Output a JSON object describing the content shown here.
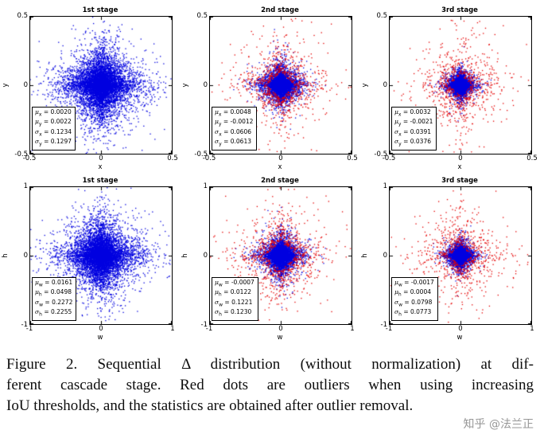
{
  "figure": {
    "caption_lines": [
      "Figure 2. Sequential Δ distribution (without normalization) at dif-",
      "ferent cascade stage. Red dots are outliers when using increasing",
      "IoU thresholds, and the statistics are obtained after outlier removal."
    ],
    "watermark": "知乎 @法兰正"
  },
  "colors": {
    "inlier": "#0000e0",
    "outlier": "#e60000",
    "axis": "#000000"
  },
  "chart_data": [
    {
      "type": "scatter",
      "title": "1st stage",
      "xlabel": "x",
      "ylabel": "y",
      "xlim": [
        -0.5,
        0.5
      ],
      "ylim": [
        -0.5,
        0.5
      ],
      "xticks": [
        "-0.5",
        "0",
        "0.5"
      ],
      "yticks": [
        "0.5",
        "0",
        "-0.5"
      ],
      "grid": false,
      "legend": null,
      "stats": [
        {
          "sym": "μ",
          "sub": "x",
          "value": "0.0020"
        },
        {
          "sym": "μ",
          "sub": "y",
          "value": "0.0022"
        },
        {
          "sym": "σ",
          "sub": "x",
          "value": "0.1234"
        },
        {
          "sym": "σ",
          "sub": "y",
          "value": "0.1297"
        }
      ],
      "series": [
        {
          "name": "inliers",
          "color": "#0000e0",
          "n": 7000,
          "scale": 0.085,
          "min_l1": 0
        }
      ]
    },
    {
      "type": "scatter",
      "title": "2nd stage",
      "xlabel": "x",
      "ylabel": "y",
      "xlim": [
        -0.5,
        0.5
      ],
      "ylim": [
        -0.5,
        0.5
      ],
      "xticks": [
        "-0.5",
        "0",
        "0.5"
      ],
      "yticks": [
        "0.5",
        "0",
        "-0.5"
      ],
      "grid": false,
      "legend": null,
      "stats": [
        {
          "sym": "μ",
          "sub": "x",
          "value": "0.0048"
        },
        {
          "sym": "μ",
          "sub": "y",
          "value": "-0.0012"
        },
        {
          "sym": "σ",
          "sub": "x",
          "value": "0.0606"
        },
        {
          "sym": "σ",
          "sub": "y",
          "value": "0.0613"
        }
      ],
      "series": [
        {
          "name": "inliers",
          "color": "#0000e0",
          "n": 4500,
          "scale": 0.042,
          "min_l1": 0
        },
        {
          "name": "outliers",
          "color": "#e60000",
          "n": 900,
          "scale": 0.1,
          "min_l1": 0.1
        }
      ]
    },
    {
      "type": "scatter",
      "title": "3rd stage",
      "xlabel": "x",
      "ylabel": "y",
      "xlim": [
        -0.5,
        0.5
      ],
      "ylim": [
        -0.5,
        0.5
      ],
      "xticks": [
        "-0.5",
        "0",
        "0.5"
      ],
      "yticks": [
        "0.5",
        "0",
        "-0.5"
      ],
      "grid": false,
      "legend": null,
      "stats": [
        {
          "sym": "μ",
          "sub": "x",
          "value": "0.0032"
        },
        {
          "sym": "μ",
          "sub": "y",
          "value": "-0.0021"
        },
        {
          "sym": "σ",
          "sub": "x",
          "value": "0.0391"
        },
        {
          "sym": "σ",
          "sub": "y",
          "value": "0.0376"
        }
      ],
      "series": [
        {
          "name": "inliers",
          "color": "#0000e0",
          "n": 4000,
          "scale": 0.028,
          "min_l1": 0
        },
        {
          "name": "outliers",
          "color": "#e60000",
          "n": 800,
          "scale": 0.11,
          "min_l1": 0.08
        }
      ]
    },
    {
      "type": "scatter",
      "title": "1st stage",
      "xlabel": "w",
      "ylabel": "h",
      "xlim": [
        -1,
        1
      ],
      "ylim": [
        -1,
        1
      ],
      "xticks": [
        "-1",
        "0",
        "1"
      ],
      "yticks": [
        "1",
        "0",
        "-1"
      ],
      "grid": false,
      "legend": null,
      "stats": [
        {
          "sym": "μ",
          "sub": "w",
          "value": "0.0161"
        },
        {
          "sym": "μ",
          "sub": "h",
          "value": "0.0498"
        },
        {
          "sym": "σ",
          "sub": "w",
          "value": "0.2272"
        },
        {
          "sym": "σ",
          "sub": "h",
          "value": "0.2255"
        }
      ],
      "series": [
        {
          "name": "inliers",
          "color": "#0000e0",
          "n": 7000,
          "scale": 0.165,
          "min_l1": 0
        }
      ]
    },
    {
      "type": "scatter",
      "title": "2nd stage",
      "xlabel": "w",
      "ylabel": "h",
      "xlim": [
        -1,
        1
      ],
      "ylim": [
        -1,
        1
      ],
      "xticks": [
        "-1",
        "0",
        "1"
      ],
      "yticks": [
        "1",
        "0",
        "-1"
      ],
      "grid": false,
      "legend": null,
      "stats": [
        {
          "sym": "μ",
          "sub": "w",
          "value": "-0.0007"
        },
        {
          "sym": "μ",
          "sub": "h",
          "value": "0.0122"
        },
        {
          "sym": "σ",
          "sub": "w",
          "value": "0.1221"
        },
        {
          "sym": "σ",
          "sub": "h",
          "value": "0.1230"
        }
      ],
      "series": [
        {
          "name": "inliers",
          "color": "#0000e0",
          "n": 4500,
          "scale": 0.085,
          "min_l1": 0
        },
        {
          "name": "outliers",
          "color": "#e60000",
          "n": 900,
          "scale": 0.2,
          "min_l1": 0.22
        }
      ]
    },
    {
      "type": "scatter",
      "title": "3rd stage",
      "xlabel": "w",
      "ylabel": "h",
      "xlim": [
        -1,
        1
      ],
      "ylim": [
        -1,
        1
      ],
      "xticks": [
        "-1",
        "0",
        "1"
      ],
      "yticks": [
        "1",
        "0",
        "-1"
      ],
      "grid": false,
      "legend": null,
      "stats": [
        {
          "sym": "μ",
          "sub": "w",
          "value": "-0.0017"
        },
        {
          "sym": "μ",
          "sub": "h",
          "value": "0.0004"
        },
        {
          "sym": "σ",
          "sub": "w",
          "value": "0.0798"
        },
        {
          "sym": "σ",
          "sub": "h",
          "value": "0.0773"
        }
      ],
      "series": [
        {
          "name": "inliers",
          "color": "#0000e0",
          "n": 4000,
          "scale": 0.056,
          "min_l1": 0
        },
        {
          "name": "outliers",
          "color": "#e60000",
          "n": 800,
          "scale": 0.22,
          "min_l1": 0.16
        }
      ]
    }
  ]
}
